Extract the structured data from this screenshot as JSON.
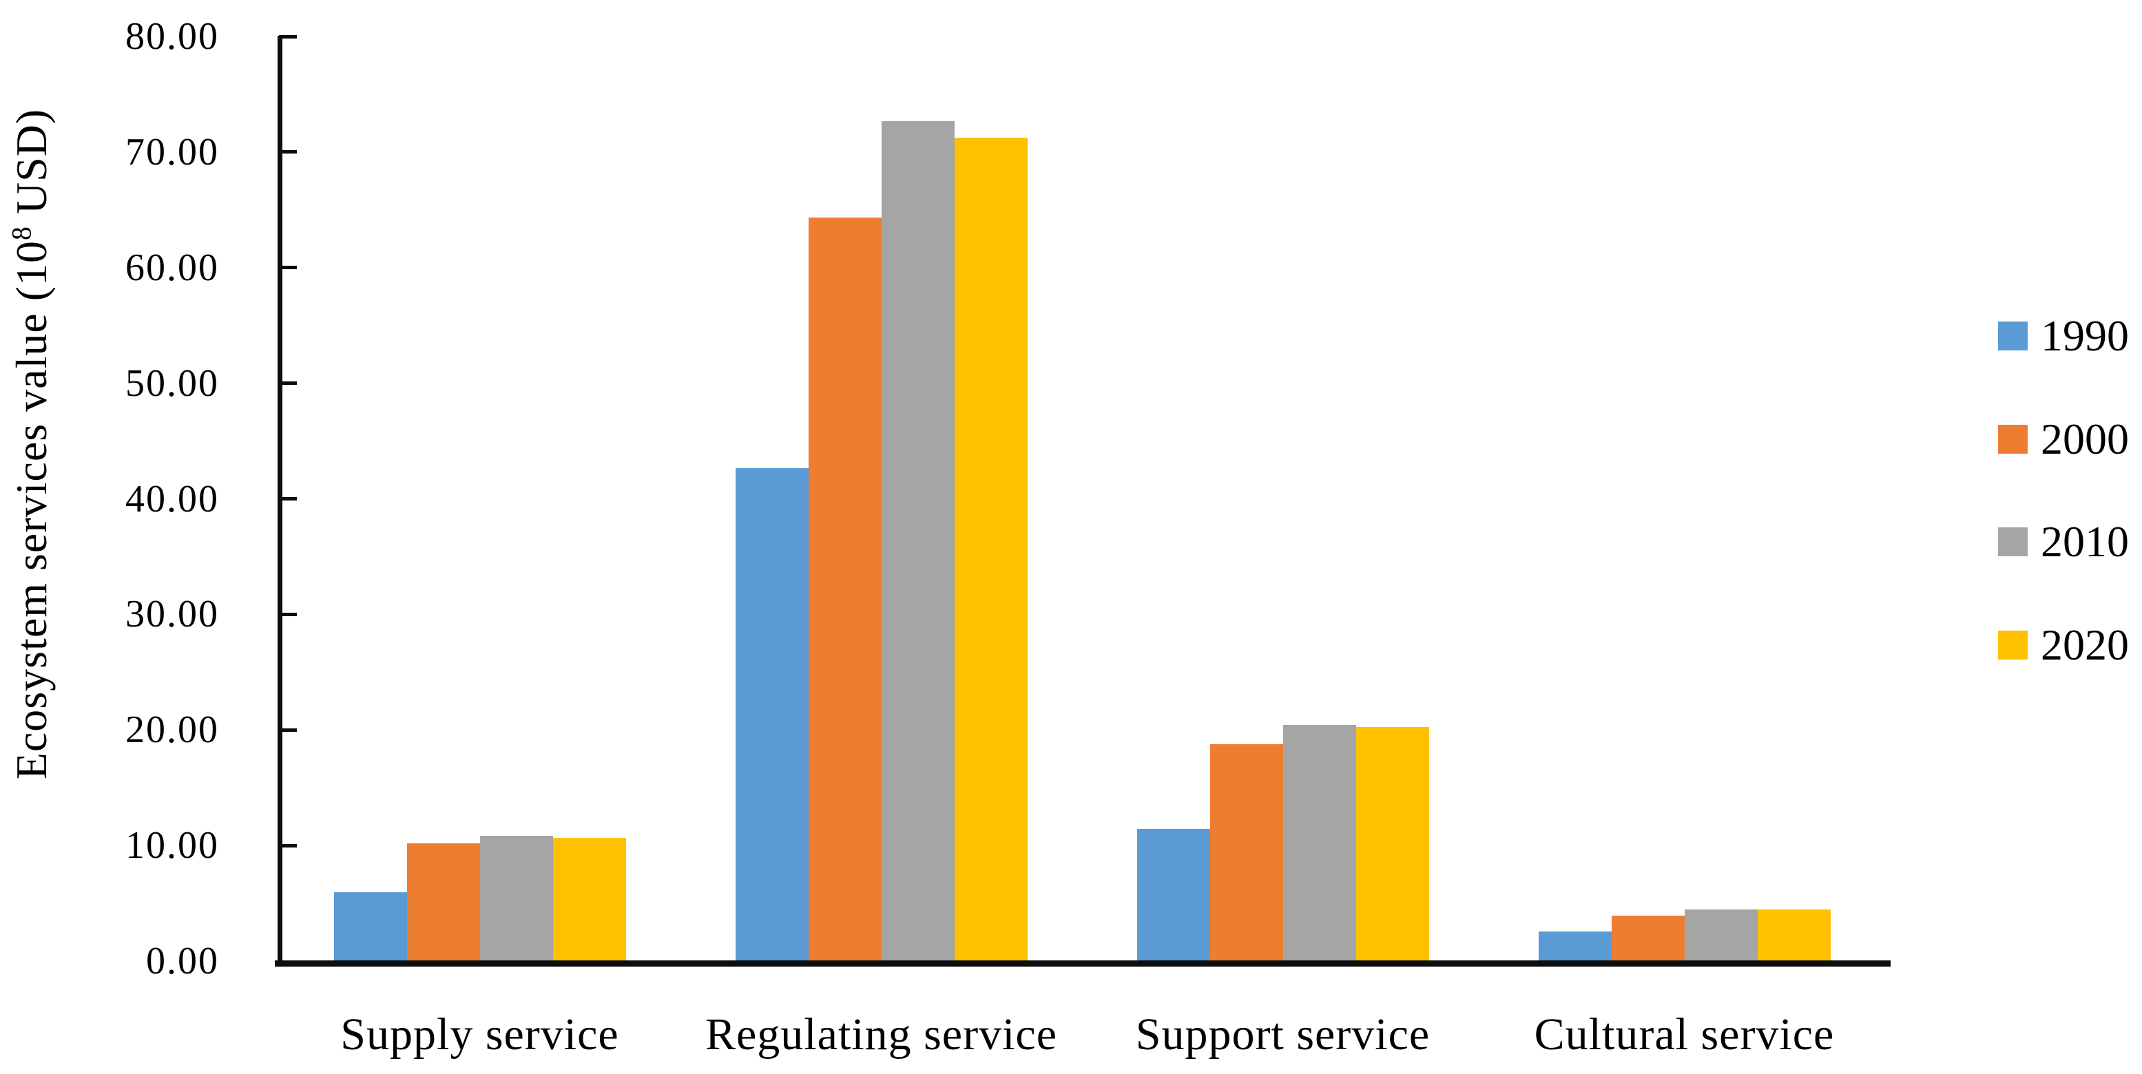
{
  "chart_data": {
    "type": "bar",
    "title": "",
    "categories": [
      "Supply service",
      "Regulating service",
      "Support service",
      "Cultural service"
    ],
    "series": [
      {
        "name": "1990",
        "color": "#5B9BD5",
        "values": [
          5.9,
          42.6,
          11.4,
          2.5
        ]
      },
      {
        "name": "2000",
        "color": "#ED7D31",
        "values": [
          10.1,
          64.3,
          18.7,
          3.9
        ]
      },
      {
        "name": "2010",
        "color": "#A5A5A5",
        "values": [
          10.8,
          72.6,
          20.4,
          4.4
        ]
      },
      {
        "name": "2020",
        "color": "#FFC000",
        "values": [
          10.6,
          71.2,
          20.2,
          4.4
        ]
      }
    ],
    "xlabel": "",
    "ylabel": "Ecosystem services value (10⁸ USD)",
    "ylabel_parts": {
      "prefix": "Ecosystem services value (10",
      "sup": "8",
      "suffix": " USD)"
    },
    "ylim": [
      0,
      80
    ],
    "ytick_step": 10,
    "ytick_labels": [
      "0.00",
      "10.00",
      "20.00",
      "30.00",
      "40.00",
      "50.00",
      "60.00",
      "70.00",
      "80.00"
    ],
    "legend_position": "right",
    "legend_entries": [
      "1990",
      "2000",
      "2010",
      "2020"
    ],
    "grid": false,
    "axis_color": "#0d0d0d",
    "background_color": "#ffffff"
  }
}
